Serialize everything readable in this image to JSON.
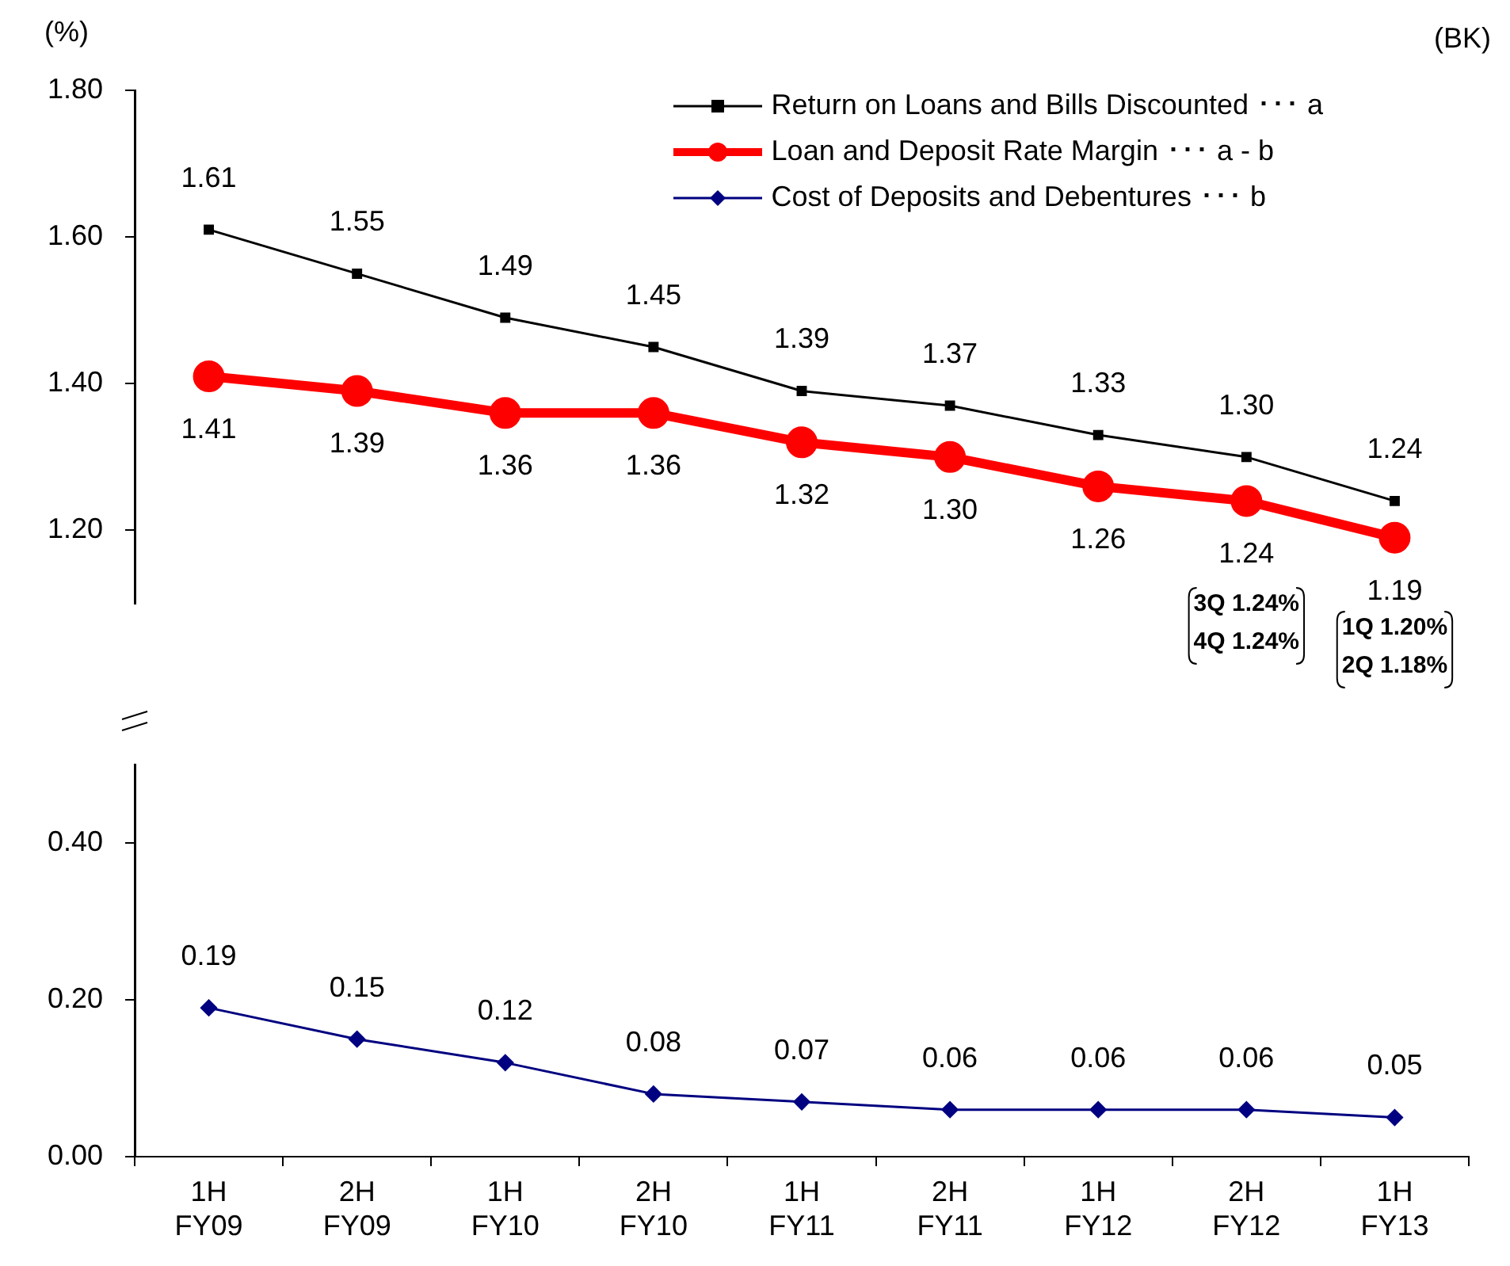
{
  "chart_data": [
    {
      "type": "line",
      "ylabel": "(%)",
      "series": [
        {
          "name": "Return on Loans and Bills Discounted ･･･ a",
          "color": "#000000",
          "marker": "square",
          "values": [
            1.61,
            1.55,
            1.49,
            1.45,
            1.39,
            1.37,
            1.33,
            1.3,
            1.24
          ],
          "value_labels": [
            "1.61",
            "1.55",
            "1.49",
            "1.45",
            "1.39",
            "1.37",
            "1.33",
            "1.30",
            "1.24"
          ]
        },
        {
          "name": "Loan and Deposit Rate Margin ･･･ a - b",
          "color": "#ff0000",
          "marker": "circle",
          "values": [
            1.41,
            1.39,
            1.36,
            1.36,
            1.32,
            1.3,
            1.26,
            1.24,
            1.19
          ],
          "value_labels": [
            "1.41",
            "1.39",
            "1.36",
            "1.36",
            "1.32",
            "1.30",
            "1.26",
            "1.24",
            "1.19"
          ]
        }
      ],
      "ylim": [
        1.1,
        1.8
      ],
      "yticks": [
        {
          "value": 1.2,
          "label": "1.20"
        },
        {
          "value": 1.4,
          "label": "1.40"
        },
        {
          "value": 1.6,
          "label": "1.60"
        },
        {
          "value": 1.8,
          "label": "1.80"
        }
      ],
      "tick_labels": "y",
      "legend": "top right",
      "annotations": [
        "(BK)",
        "3Q 1.24%\n4Q 1.24%",
        "1Q 1.20%\n2Q 1.18%"
      ]
    },
    {
      "type": "line",
      "categories": [
        "1H FY09",
        "2H FY09",
        "1H FY10",
        "2H FY10",
        "1H FY11",
        "2H FY11",
        "1H FY12",
        "2H FY12",
        "1H FY13"
      ],
      "series": [
        {
          "name": "Cost of Deposits and Debentures ･･･ b",
          "color": "#000080",
          "marker": "diamond",
          "values": [
            0.19,
            0.15,
            0.12,
            0.08,
            0.07,
            0.06,
            0.06,
            0.06,
            0.05
          ],
          "value_labels": [
            "0.19",
            "0.15",
            "0.12",
            "0.08",
            "0.07",
            "0.06",
            "0.06",
            "0.06",
            "0.05"
          ]
        }
      ],
      "ylim": [
        0,
        0.5
      ],
      "yticks": [
        {
          "value": 0,
          "label": "0.00"
        },
        {
          "value": 0.2,
          "label": "0.20"
        },
        {
          "value": 0.4,
          "label": "0.40"
        }
      ],
      "legend": "top right"
    }
  ]
}
